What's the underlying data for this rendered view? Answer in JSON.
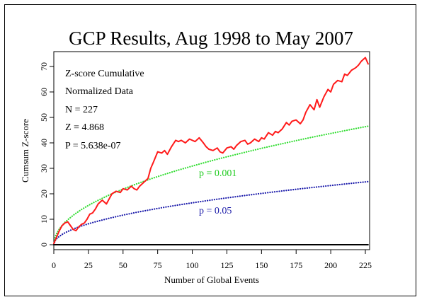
{
  "chart_data": {
    "type": "line",
    "title": "GCP Results, Aug 1998 to May 2007",
    "xlabel": "Number of Global Events",
    "ylabel": "Cumsum Z-score",
    "xlim": [
      0,
      227
    ],
    "ylim": [
      -2,
      75
    ],
    "x_ticks": [
      0,
      25,
      50,
      75,
      100,
      125,
      150,
      175,
      200,
      225
    ],
    "y_ticks": [
      0,
      10,
      20,
      30,
      40,
      50,
      60,
      70
    ],
    "grid": false,
    "stats": [
      "Z-score Cumulative",
      "Normalized Data",
      "N = 227",
      "Z = 4.868",
      "P = 5.638e-07"
    ],
    "annotations": {
      "p001": "p = 0.001",
      "p05": "p = 0.05"
    },
    "series": [
      {
        "color": "#ff1a1a",
        "style": "solid",
        "x": [
          0,
          2,
          4,
          6,
          8,
          10,
          12,
          14,
          16,
          18,
          20,
          22,
          24,
          26,
          28,
          30,
          32,
          35,
          38,
          40,
          42,
          45,
          48,
          50,
          53,
          56,
          58,
          60,
          62,
          65,
          68,
          70,
          72,
          75,
          78,
          80,
          82,
          85,
          88,
          90,
          92,
          95,
          98,
          100,
          102,
          105,
          108,
          110,
          112,
          115,
          118,
          120,
          122,
          125,
          128,
          130,
          132,
          135,
          138,
          140,
          142,
          145,
          148,
          150,
          152,
          155,
          158,
          160,
          162,
          165,
          168,
          170,
          172,
          175,
          178,
          180,
          182,
          185,
          188,
          190,
          192,
          195,
          198,
          200,
          202,
          205,
          208,
          210,
          212,
          215,
          218,
          220,
          222,
          225,
          227
        ],
        "y": [
          0.5,
          3,
          5.5,
          7.5,
          8.5,
          9,
          7.5,
          6,
          5.5,
          7,
          8,
          8.5,
          10,
          12,
          12.5,
          14,
          16,
          17.5,
          16,
          18,
          20,
          21,
          20.5,
          22,
          21.5,
          23,
          22,
          21.5,
          23,
          24.5,
          26,
          30,
          32.5,
          36.5,
          36,
          37,
          35.5,
          38.5,
          41,
          40.5,
          41,
          40,
          41.5,
          41,
          40.5,
          42,
          40,
          38.5,
          37.5,
          37,
          38,
          36.5,
          36,
          38,
          38.5,
          37.5,
          39,
          40.5,
          41,
          39.5,
          40,
          41.5,
          40.5,
          42,
          41.5,
          44,
          43,
          44.5,
          44,
          45.5,
          48,
          47,
          48.5,
          49,
          47.5,
          49,
          52,
          55,
          53,
          57,
          54,
          58,
          61,
          60,
          63,
          64.5,
          64,
          67,
          66.5,
          68.5,
          69.5,
          70.5,
          72,
          73.5,
          71
        ]
      },
      {
        "color": "#33dd33",
        "style": "dotted",
        "envelope": "p = 0.001",
        "x": [
          0,
          1,
          2,
          4,
          6,
          8,
          10,
          15,
          20,
          25,
          30,
          40,
          50,
          60,
          70,
          80,
          90,
          100,
          110,
          120,
          130,
          140,
          150,
          160,
          170,
          180,
          190,
          200,
          210,
          220,
          227
        ],
        "y": [
          0,
          3.09,
          4.37,
          6.18,
          7.57,
          8.74,
          9.77,
          11.97,
          13.82,
          15.45,
          16.93,
          19.54,
          21.85,
          23.93,
          25.85,
          27.64,
          29.32,
          30.9,
          32.41,
          33.85,
          35.23,
          36.56,
          37.85,
          39.09,
          40.29,
          41.46,
          42.6,
          43.7,
          44.78,
          45.84,
          46.56
        ]
      },
      {
        "color": "#1a1aaa",
        "style": "dotted",
        "envelope": "p = 0.05",
        "x": [
          0,
          1,
          2,
          4,
          6,
          8,
          10,
          15,
          20,
          25,
          30,
          40,
          50,
          60,
          70,
          80,
          90,
          100,
          110,
          120,
          130,
          140,
          150,
          160,
          170,
          180,
          190,
          200,
          210,
          220,
          227
        ],
        "y": [
          0,
          1.64,
          2.33,
          3.29,
          4.03,
          4.65,
          5.2,
          6.37,
          7.36,
          8.22,
          9.01,
          10.4,
          11.63,
          12.74,
          13.76,
          14.71,
          15.6,
          16.45,
          17.25,
          18.02,
          18.75,
          19.46,
          20.15,
          20.8,
          21.44,
          22.07,
          22.67,
          23.26,
          23.83,
          24.4,
          24.78
        ]
      },
      {
        "color": "#000000",
        "style": "solid",
        "baseline": true,
        "x": [
          0,
          227
        ],
        "y": [
          0,
          0
        ]
      }
    ]
  }
}
